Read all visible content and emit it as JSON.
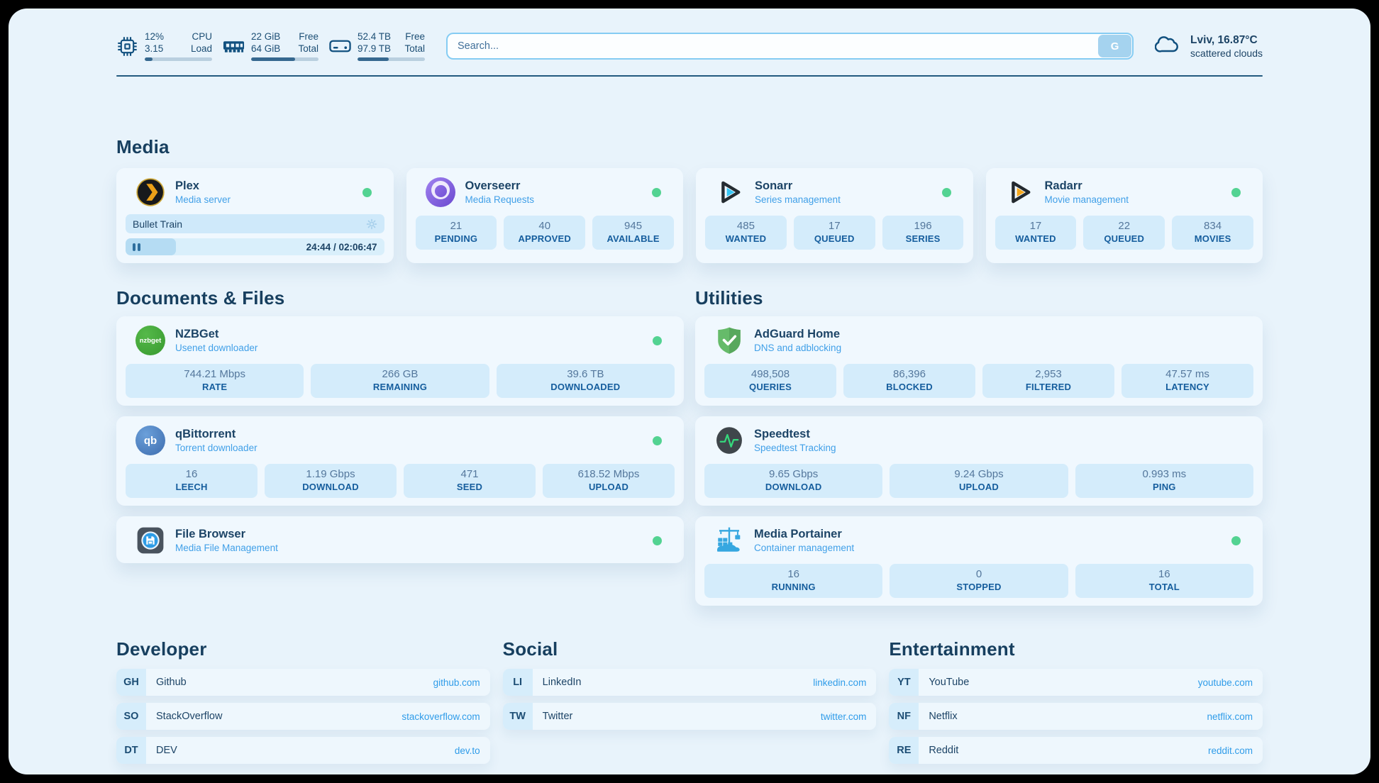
{
  "header": {
    "stats": [
      {
        "icon": "cpu-chip-icon",
        "values": [
          "12%",
          "3.15"
        ],
        "labels": [
          "CPU",
          "Load"
        ],
        "progress_pct": 12
      },
      {
        "icon": "ram-icon",
        "values": [
          "22 GiB",
          "64 GiB"
        ],
        "labels": [
          "Free",
          "Total"
        ],
        "progress_pct": 65
      },
      {
        "icon": "disk-icon",
        "values": [
          "52.4 TB",
          "97.9 TB"
        ],
        "labels": [
          "Free",
          "Total"
        ],
        "progress_pct": 46
      }
    ],
    "search": {
      "placeholder": "Search...",
      "button": "G"
    },
    "weather": {
      "location": "Lviv, 16.87°C",
      "condition": "scattered clouds"
    }
  },
  "media": {
    "title": "Media",
    "plex": {
      "name": "Plex",
      "desc": "Media server",
      "now_playing": "Bullet Train",
      "time": "24:44 / 02:06:47",
      "progress_pct": 19.5
    },
    "overseerr": {
      "name": "Overseerr",
      "desc": "Media Requests",
      "stats": [
        {
          "v": "21",
          "l": "PENDING"
        },
        {
          "v": "40",
          "l": "APPROVED"
        },
        {
          "v": "945",
          "l": "AVAILABLE"
        }
      ]
    },
    "sonarr": {
      "name": "Sonarr",
      "desc": "Series management",
      "stats": [
        {
          "v": "485",
          "l": "WANTED"
        },
        {
          "v": "17",
          "l": "QUEUED"
        },
        {
          "v": "196",
          "l": "SERIES"
        }
      ]
    },
    "radarr": {
      "name": "Radarr",
      "desc": "Movie management",
      "stats": [
        {
          "v": "17",
          "l": "WANTED"
        },
        {
          "v": "22",
          "l": "QUEUED"
        },
        {
          "v": "834",
          "l": "MOVIES"
        }
      ]
    }
  },
  "documents": {
    "title": "Documents & Files",
    "nzbget": {
      "name": "NZBGet",
      "desc": "Usenet downloader",
      "icon_label": "nzbget",
      "stats": [
        {
          "v": "744.21 Mbps",
          "l": "RATE"
        },
        {
          "v": "266 GB",
          "l": "REMAINING"
        },
        {
          "v": "39.6 TB",
          "l": "DOWNLOADED"
        }
      ]
    },
    "qbittorrent": {
      "name": "qBittorrent",
      "desc": "Torrent downloader",
      "icon_label": "qb",
      "stats": [
        {
          "v": "16",
          "l": "LEECH"
        },
        {
          "v": "1.19 Gbps",
          "l": "DOWNLOAD"
        },
        {
          "v": "471",
          "l": "SEED"
        },
        {
          "v": "618.52 Mbps",
          "l": "UPLOAD"
        }
      ]
    },
    "filebrowser": {
      "name": "File Browser",
      "desc": "Media File Management"
    }
  },
  "utilities": {
    "title": "Utilities",
    "adguard": {
      "name": "AdGuard Home",
      "desc": "DNS and adblocking",
      "stats": [
        {
          "v": "498,508",
          "l": "QUERIES"
        },
        {
          "v": "86,396",
          "l": "BLOCKED"
        },
        {
          "v": "2,953",
          "l": "FILTERED"
        },
        {
          "v": "47.57 ms",
          "l": "LATENCY"
        }
      ]
    },
    "speedtest": {
      "name": "Speedtest",
      "desc": "Speedtest Tracking",
      "stats": [
        {
          "v": "9.65 Gbps",
          "l": "DOWNLOAD"
        },
        {
          "v": "9.24 Gbps",
          "l": "UPLOAD"
        },
        {
          "v": "0.993 ms",
          "l": "PING"
        }
      ]
    },
    "portainer": {
      "name": "Media Portainer",
      "desc": "Container management",
      "stats": [
        {
          "v": "16",
          "l": "RUNNING"
        },
        {
          "v": "0",
          "l": "STOPPED"
        },
        {
          "v": "16",
          "l": "TOTAL"
        }
      ]
    }
  },
  "links": {
    "developer": {
      "title": "Developer",
      "items": [
        {
          "badge": "GH",
          "name": "Github",
          "url": "github.com"
        },
        {
          "badge": "SO",
          "name": "StackOverflow",
          "url": "stackoverflow.com"
        },
        {
          "badge": "DT",
          "name": "DEV",
          "url": "dev.to"
        }
      ]
    },
    "social": {
      "title": "Social",
      "items": [
        {
          "badge": "LI",
          "name": "LinkedIn",
          "url": "linkedin.com"
        },
        {
          "badge": "TW",
          "name": "Twitter",
          "url": "twitter.com"
        }
      ]
    },
    "entertainment": {
      "title": "Entertainment",
      "items": [
        {
          "badge": "YT",
          "name": "YouTube",
          "url": "youtube.com"
        },
        {
          "badge": "NF",
          "name": "Netflix",
          "url": "netflix.com"
        },
        {
          "badge": "RE",
          "name": "Reddit",
          "url": "reddit.com"
        }
      ]
    }
  },
  "colors": {
    "accent_blue": "#2f9ce9",
    "navy": "#1c4466",
    "status_green": "#53d392"
  }
}
